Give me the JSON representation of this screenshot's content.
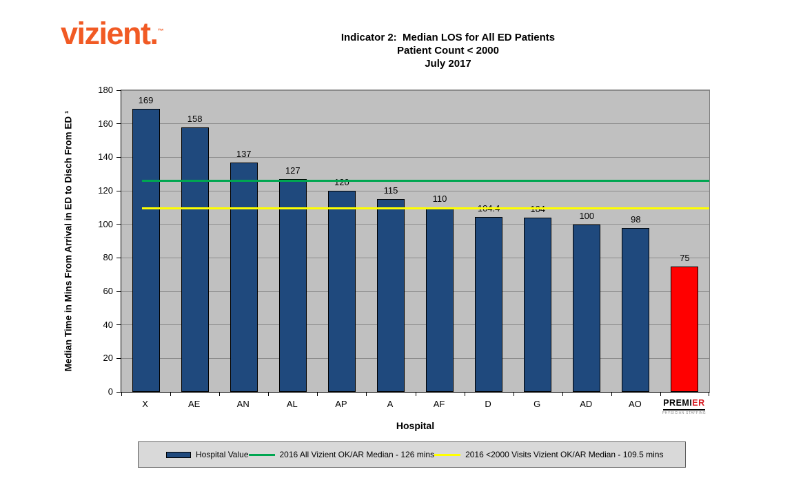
{
  "logo": {
    "text": "vizient",
    "dot": ".",
    "tm": "™"
  },
  "title": {
    "line1": "Indicator 2:  Median LOS for All ED Patients",
    "line2": "Patient Count < 2000",
    "line3": "July 2017"
  },
  "chart_data": {
    "type": "bar",
    "title": "Indicator 2: Median LOS for All ED Patients — Patient Count < 2000 — July 2017",
    "categories": [
      "X",
      "AE",
      "AN",
      "AL",
      "AP",
      "A",
      "AF",
      "D",
      "G",
      "AD",
      "AO",
      "PREMIER"
    ],
    "values": [
      169,
      158,
      137,
      127,
      120,
      115,
      110,
      104.4,
      104,
      100,
      98,
      75
    ],
    "bar_colors": [
      "#1F497D",
      "#1F497D",
      "#1F497D",
      "#1F497D",
      "#1F497D",
      "#1F497D",
      "#1F497D",
      "#1F497D",
      "#1F497D",
      "#1F497D",
      "#1F497D",
      "#FF0000"
    ],
    "xlabel": "Hospital",
    "ylabel": "Median Time in Mins From Arrival in ED to Disch From ED ¹",
    "ylim": [
      0,
      180
    ],
    "ytick_interval": 20,
    "grid": true,
    "plot_bg": "#C0C0C0",
    "reference_lines": [
      {
        "value": 126,
        "color": "#00A651",
        "label": "2016 All Vizient OK/AR Median - 126 mins"
      },
      {
        "value": 109.5,
        "color": "#FFFF00",
        "label": "2016 <2000 Visits Vizient OK/AR Median - 109.5 mins"
      }
    ],
    "legend_position": "bottom",
    "legend": [
      {
        "type": "bar",
        "color": "#1F497D",
        "label": "Hospital Value"
      },
      {
        "type": "line",
        "color": "#00A651",
        "label": "2016 All Vizient OK/AR Median - 126 mins"
      },
      {
        "type": "line",
        "color": "#FFFF00",
        "label": "2016 <2000 Visits Vizient OK/AR Median - 109.5 mins"
      }
    ]
  },
  "premier_logo": {
    "black": "PREMI",
    "red": "ER",
    "sub": "PHYSICIAN STAFFING"
  }
}
